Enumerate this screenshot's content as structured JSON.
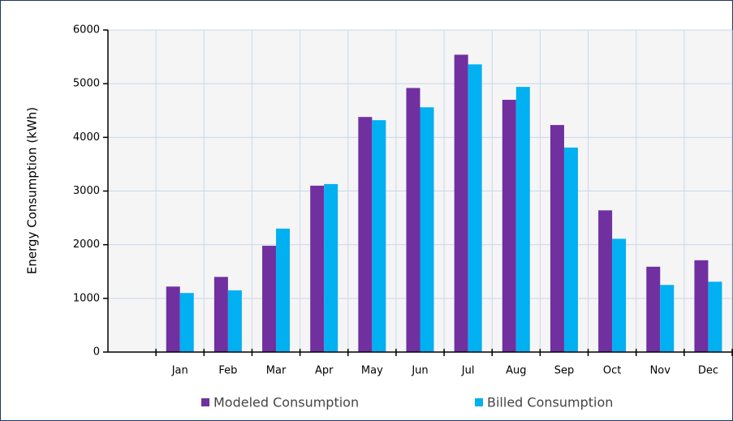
{
  "chart_data": {
    "type": "bar",
    "y_label": "Energy Consumption (kWh)",
    "categories": [
      null,
      "Jan",
      "Feb",
      "Mar",
      "Apr",
      "May",
      "Jun",
      "Jul",
      "Aug",
      "Sep",
      "Oct",
      "Nov",
      "Dec"
    ],
    "series": [
      {
        "name": "Modeled Consumption",
        "color": "#7030a0",
        "values": [
          null,
          1220,
          1400,
          1980,
          3100,
          4380,
          4920,
          5540,
          4700,
          4230,
          2640,
          1590,
          1710
        ]
      },
      {
        "name": "Billed Consumption",
        "color": "#00b0f0",
        "values": [
          null,
          1100,
          1150,
          2300,
          3130,
          4320,
          4560,
          5360,
          4940,
          3810,
          2110,
          1250,
          1310
        ]
      }
    ],
    "ylim": [
      0,
      6000
    ],
    "yticks": [
      0,
      1000,
      2000,
      3000,
      4000,
      5000,
      6000
    ],
    "grid": true
  }
}
